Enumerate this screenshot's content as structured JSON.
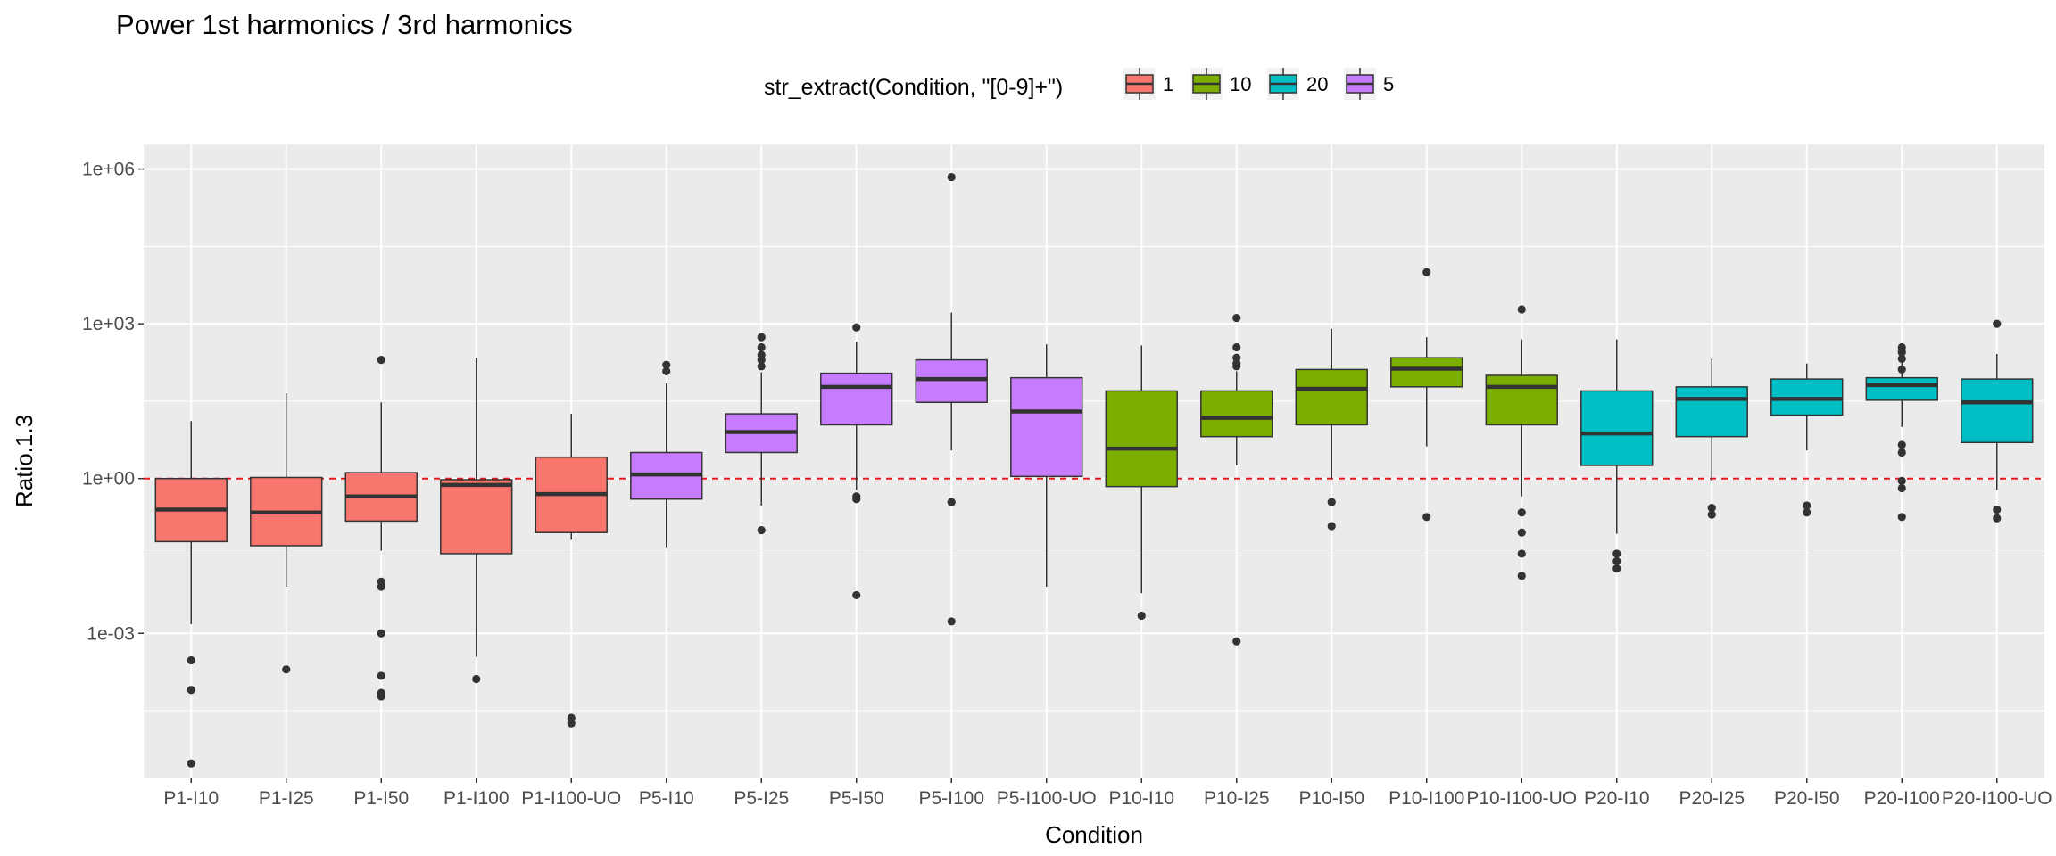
{
  "chart_data": {
    "type": "box",
    "title": "Power 1st harmonics / 3rd harmonics",
    "xlabel": "Condition",
    "ylabel": "Ratio.1.3",
    "y_scale": "log10",
    "y_ticks": [
      0.001,
      1,
      1000,
      1000000
    ],
    "y_tick_labels": [
      "1e-03",
      "1e+00",
      "1e+03",
      "1e+06"
    ],
    "ylim": [
      1.6e-06,
      3000000
    ],
    "reference_line": {
      "y": 1,
      "color": "#e41a1c",
      "style": "dashed"
    },
    "grid": true,
    "legend": {
      "title": "str_extract(Condition, \"[0-9]+\")",
      "position": "top",
      "entries": [
        {
          "label": "1",
          "color": "#F8766D"
        },
        {
          "label": "10",
          "color": "#7CAE00"
        },
        {
          "label": "20",
          "color": "#00BFC4"
        },
        {
          "label": "5",
          "color": "#C77CFF"
        }
      ]
    },
    "categories": [
      "P1-I10",
      "P1-I25",
      "P1-I50",
      "P1-I100",
      "P1-I100-UO",
      "P5-I10",
      "P5-I25",
      "P5-I50",
      "P5-I100",
      "P5-I100-UO",
      "P10-I10",
      "P10-I25",
      "P10-I50",
      "P10-I100",
      "P10-I100-UO",
      "P20-I10",
      "P20-I25",
      "P20-I50",
      "P20-I100",
      "P20-I100-UO"
    ],
    "boxes": [
      {
        "category": "P1-I10",
        "group": "1",
        "whisker_low": 0.0015,
        "q1": 0.06,
        "median": 0.25,
        "q3": 1.0,
        "whisker_high": 13,
        "outliers": [
          0.0003,
          8e-05,
          3e-06
        ]
      },
      {
        "category": "P1-I25",
        "group": "1",
        "whisker_low": 0.008,
        "q1": 0.05,
        "median": 0.22,
        "q3": 1.05,
        "whisker_high": 45,
        "outliers": [
          0.0002
        ]
      },
      {
        "category": "P1-I50",
        "group": "1",
        "whisker_low": 0.04,
        "q1": 0.15,
        "median": 0.45,
        "q3": 1.3,
        "whisker_high": 30,
        "outliers": [
          200,
          0.01,
          0.008,
          0.001,
          0.00015,
          7e-05,
          6e-05
        ]
      },
      {
        "category": "P1-I100",
        "group": "1",
        "whisker_low": 0.00035,
        "q1": 0.035,
        "median": 0.75,
        "q3": 0.95,
        "whisker_high": 220,
        "outliers": [
          0.00013
        ]
      },
      {
        "category": "P1-I100-UO",
        "group": "1",
        "whisker_low": 0.065,
        "q1": 0.09,
        "median": 0.5,
        "q3": 2.6,
        "whisker_high": 18,
        "outliers": [
          2.3e-05,
          1.8e-05
        ]
      },
      {
        "category": "P5-I10",
        "group": "5",
        "whisker_low": 0.045,
        "q1": 0.4,
        "median": 1.2,
        "q3": 3.2,
        "whisker_high": 70,
        "outliers": [
          160,
          120
        ]
      },
      {
        "category": "P5-I25",
        "group": "5",
        "whisker_low": 0.3,
        "q1": 3.2,
        "median": 8,
        "q3": 18,
        "whisker_high": 115,
        "outliers": [
          0.1,
          150,
          200,
          250,
          350,
          550
        ]
      },
      {
        "category": "P5-I50",
        "group": "5",
        "whisker_low": 0.6,
        "q1": 11,
        "median": 60,
        "q3": 110,
        "whisker_high": 450,
        "outliers": [
          850,
          0.45,
          0.4,
          0.0055
        ]
      },
      {
        "category": "P5-I100",
        "group": "5",
        "whisker_low": 3.5,
        "q1": 30,
        "median": 85,
        "q3": 200,
        "whisker_high": 1650,
        "outliers": [
          700000,
          0.35,
          0.0017
        ]
      },
      {
        "category": "P5-I100-UO",
        "group": "5",
        "whisker_low": 0.008,
        "q1": 1.1,
        "median": 20,
        "q3": 90,
        "whisker_high": 400,
        "outliers": []
      },
      {
        "category": "P10-I10",
        "group": "10",
        "whisker_low": 0.006,
        "q1": 0.7,
        "median": 3.8,
        "q3": 50,
        "whisker_high": 380,
        "outliers": [
          0.0022
        ]
      },
      {
        "category": "P10-I25",
        "group": "10",
        "whisker_low": 1.8,
        "q1": 6.5,
        "median": 15,
        "q3": 50,
        "whisker_high": 120,
        "outliers": [
          1300,
          350,
          220,
          170,
          150,
          0.0007
        ]
      },
      {
        "category": "P10-I50",
        "group": "10",
        "whisker_low": 1,
        "q1": 11,
        "median": 55,
        "q3": 130,
        "whisker_high": 800,
        "outliers": [
          0.35,
          0.12
        ]
      },
      {
        "category": "P10-I100",
        "group": "10",
        "whisker_low": 4.2,
        "q1": 60,
        "median": 135,
        "q3": 220,
        "whisker_high": 550,
        "outliers": [
          10000,
          0.18
        ]
      },
      {
        "category": "P10-I100-UO",
        "group": "10",
        "whisker_low": 0.45,
        "q1": 11,
        "median": 60,
        "q3": 100,
        "whisker_high": 500,
        "outliers": [
          1900,
          0.22,
          0.09,
          0.035,
          0.013
        ]
      },
      {
        "category": "P20-I10",
        "group": "20",
        "whisker_low": 0.085,
        "q1": 1.8,
        "median": 7.5,
        "q3": 50,
        "whisker_high": 500,
        "outliers": [
          0.035,
          0.025,
          0.018
        ]
      },
      {
        "category": "P20-I25",
        "group": "20",
        "whisker_low": 0.9,
        "q1": 6.5,
        "median": 35,
        "q3": 60,
        "whisker_high": 210,
        "outliers": [
          0.27,
          0.2
        ]
      },
      {
        "category": "P20-I50",
        "group": "20",
        "whisker_low": 3.5,
        "q1": 17,
        "median": 35,
        "q3": 85,
        "whisker_high": 170,
        "outliers": [
          0.3,
          0.22
        ]
      },
      {
        "category": "P20-I100",
        "group": "20",
        "whisker_low": 10,
        "q1": 33,
        "median": 65,
        "q3": 90,
        "whisker_high": 180,
        "outliers": [
          350,
          280,
          210,
          130,
          4.5,
          3.2,
          0.9,
          0.65,
          0.18
        ]
      },
      {
        "category": "P20-I100-UO",
        "group": "20",
        "whisker_low": 0.6,
        "q1": 5,
        "median": 30,
        "q3": 85,
        "whisker_high": 260,
        "outliers": [
          1000,
          0.25,
          0.17
        ]
      }
    ]
  }
}
